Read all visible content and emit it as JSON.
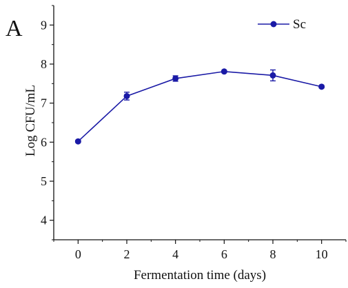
{
  "panel_label": "A",
  "chart_data": {
    "type": "line",
    "xlabel": "Fermentation time (days)",
    "ylabel": "Log CFU/mL",
    "xlim": [
      -1,
      11
    ],
    "ylim": [
      3.5,
      9.5
    ],
    "x_ticks": [
      0,
      2,
      4,
      6,
      8,
      10
    ],
    "y_ticks": [
      4,
      5,
      6,
      7,
      8,
      9
    ],
    "grid": false,
    "legend_position": "top-right",
    "series": [
      {
        "name": "Sc",
        "color": "#1a1aa6",
        "x": [
          0,
          2,
          4,
          6,
          8,
          10
        ],
        "y": [
          6.02,
          7.18,
          7.63,
          7.81,
          7.71,
          7.42
        ],
        "error": [
          0.03,
          0.1,
          0.07,
          0.03,
          0.14,
          0.03
        ]
      }
    ]
  }
}
